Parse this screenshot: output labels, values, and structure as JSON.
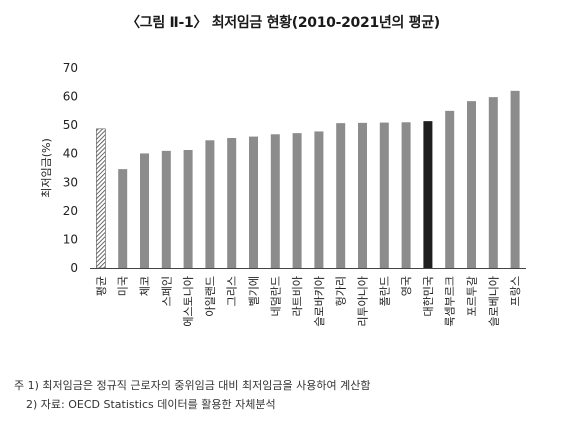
{
  "title": "〈그림 Ⅱ-1〉 최저임금 현황(2010-2021년의 평균)",
  "notes": [
    "주 1) 최저임금은 정규직 근로자의 중위임금 대비 최저임금을 사용하여 계산함",
    "2) 자료: OECD Statistics 데이터를 활용한 자체분석"
  ],
  "chart_data": {
    "type": "bar",
    "title": "",
    "xlabel": "",
    "ylabel": "최저임금(%)",
    "ylim": [
      0,
      70
    ],
    "yticks": [
      0,
      10,
      20,
      30,
      40,
      50,
      60,
      70
    ],
    "grid": false,
    "categories": [
      "평균",
      "미국",
      "체코",
      "스페인",
      "에스토니아",
      "아일랜드",
      "그리스",
      "벨기에",
      "네덜란드",
      "라트비아",
      "슬로바키아",
      "헝가리",
      "리투아니아",
      "폴란드",
      "영국",
      "대한민국",
      "룩셈부르크",
      "포르투갈",
      "슬로베니아",
      "프랑스"
    ],
    "values": [
      48.7,
      34.6,
      40.1,
      41.0,
      41.3,
      44.7,
      45.5,
      46.0,
      46.8,
      47.2,
      47.8,
      50.7,
      50.8,
      50.9,
      51.0,
      51.4,
      55.0,
      58.4,
      59.8,
      62.0
    ],
    "bar_styles": [
      "hatched",
      "gray",
      "gray",
      "gray",
      "gray",
      "gray",
      "gray",
      "gray",
      "gray",
      "gray",
      "gray",
      "gray",
      "gray",
      "gray",
      "gray",
      "highlight",
      "gray",
      "gray",
      "gray",
      "gray"
    ],
    "colors": {
      "bar": "#8c8c8c",
      "highlight": "#1e1e1e",
      "hatch": "#555555",
      "axis": "#444444"
    }
  }
}
